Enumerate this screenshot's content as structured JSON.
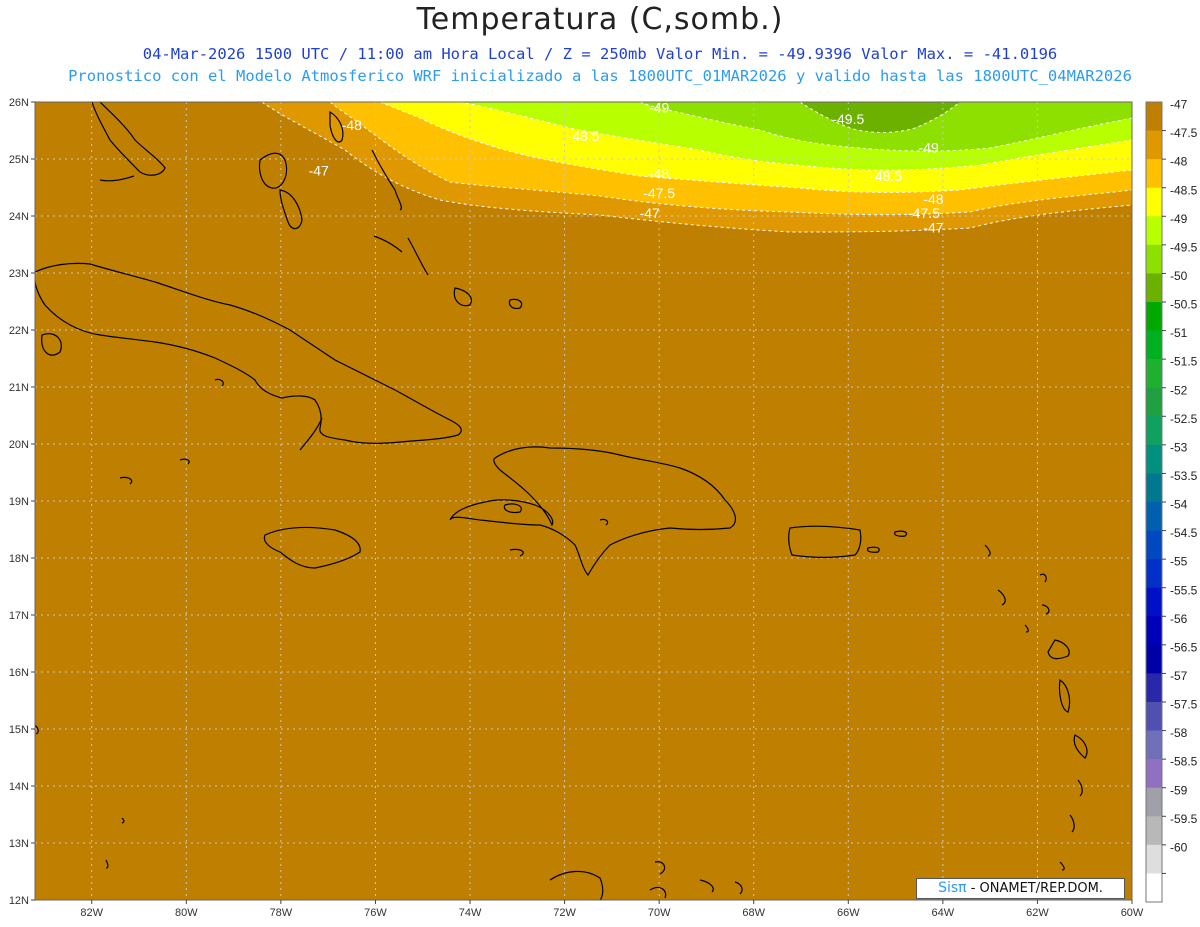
{
  "header": {
    "title": "Temperatura (C,somb.)",
    "subtitle1": "04-Mar-2026  1500 UTC / 11:00 am Hora Local / Z = 250mb  Valor Min. = -49.9396  Valor Max. = -41.0196",
    "subtitle2": "Pronostico con el Modelo Atmosferico WRF inicializado a las 1800UTC_01MAR2026 y valido hasta las  1800UTC_04MAR2026"
  },
  "map": {
    "lat_labels": [
      "26N",
      "25N",
      "24N",
      "23N",
      "22N",
      "21N",
      "20N",
      "19N",
      "18N",
      "17N",
      "16N",
      "15N",
      "14N",
      "13N",
      "12N"
    ],
    "lon_labels": [
      "82W",
      "80W",
      "78W",
      "76W",
      "74W",
      "72W",
      "70W",
      "68W",
      "66W",
      "64W",
      "62W",
      "60W"
    ],
    "lon_range": [
      -83.2,
      -60.0
    ],
    "lat_range": [
      12.0,
      26.0
    ],
    "background_color": "#bf7f00",
    "contour_labels": [
      {
        "text": "-48",
        "lon": -76.5,
        "lat": 25.6
      },
      {
        "text": "-47",
        "lon": -77.2,
        "lat": 24.8
      },
      {
        "text": "-49",
        "lon": -70.0,
        "lat": 25.9
      },
      {
        "text": "-49.5",
        "lon": -66.0,
        "lat": 25.7
      },
      {
        "text": "-48.5",
        "lon": -71.6,
        "lat": 25.4
      },
      {
        "text": "-49",
        "lon": -64.3,
        "lat": 25.2
      },
      {
        "text": "-48",
        "lon": -70.0,
        "lat": 24.75
      },
      {
        "text": "-48.5",
        "lon": -65.2,
        "lat": 24.7
      },
      {
        "text": "-47.5",
        "lon": -70.0,
        "lat": 24.4
      },
      {
        "text": "-48",
        "lon": -64.2,
        "lat": 24.3
      },
      {
        "text": "-47",
        "lon": -70.2,
        "lat": 24.05
      },
      {
        "text": "-47.5",
        "lon": -64.4,
        "lat": 24.05
      },
      {
        "text": "-47",
        "lon": -64.2,
        "lat": 23.8
      }
    ]
  },
  "colorbar": {
    "labels": [
      "-47",
      "-47.5",
      "-48",
      "-48.5",
      "-49",
      "-49.5",
      "-50",
      "-50.5",
      "-51",
      "-51.5",
      "-52",
      "-52.5",
      "-53",
      "-53.5",
      "-54",
      "-54.5",
      "-55",
      "-55.5",
      "-56",
      "-56.5",
      "-57",
      "-57.5",
      "-58",
      "-58.5",
      "-59",
      "-59.5",
      "-60"
    ],
    "colors": [
      "#bf7f00",
      "#e09800",
      "#ffc000",
      "#ffff00",
      "#b8ff00",
      "#8ee000",
      "#6cb000",
      "#00a800",
      "#00b020",
      "#20b030",
      "#20a040",
      "#10a060",
      "#009080",
      "#007890",
      "#0060b0",
      "#0048c0",
      "#0030c8",
      "#0010c8",
      "#0000b8",
      "#0000a8",
      "#2828a8",
      "#5050b0",
      "#7070b8",
      "#9070c0",
      "#a0a0a8",
      "#b8b8b8",
      "#dedede",
      "#ffffff"
    ]
  },
  "credit": {
    "sis": "Sisπ",
    "org": "- ONAMET/REP.DOM."
  }
}
